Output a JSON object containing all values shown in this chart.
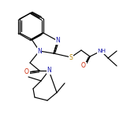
{
  "bg_color": "#ffffff",
  "bond_color": "#000000",
  "atom_color_N": "#1a1aaa",
  "atom_color_S": "#b8860b",
  "atom_color_O": "#cc2200",
  "figsize": [
    1.61,
    1.44
  ],
  "dpi": 100,
  "xlim": [
    0,
    161
  ],
  "ylim": [
    0,
    144
  ]
}
